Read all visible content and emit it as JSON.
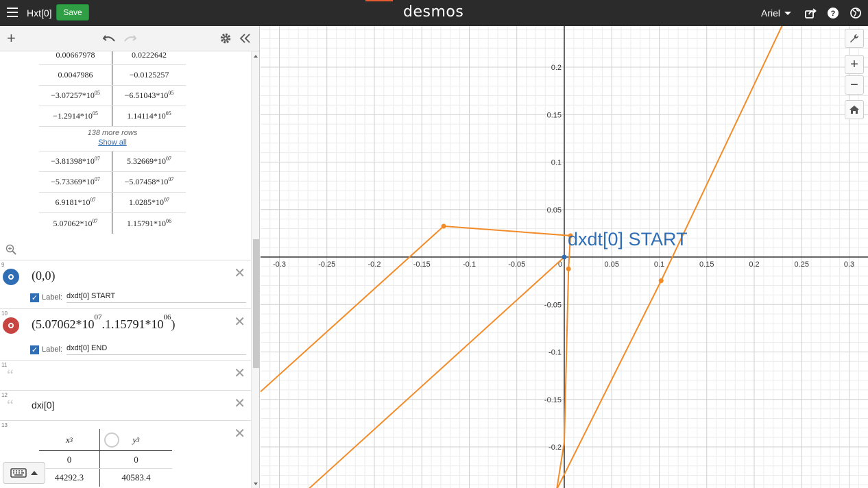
{
  "header": {
    "title": "Hxt[0]",
    "save_label": "Save",
    "brand": "desmos",
    "user": "Ariel"
  },
  "table_top": {
    "rows": [
      [
        "0.00667978",
        "0.0222642"
      ],
      [
        "0.0047986",
        "−0.0125257"
      ],
      [
        "−3.07257*10",
        "05",
        "−6.51043*10",
        "05"
      ],
      [
        "−1.2914*10",
        "05",
        "1.14114*10",
        "05"
      ]
    ]
  },
  "more_rows": {
    "count_label": "138 more rows",
    "show_all": "Show all"
  },
  "table_bottom": {
    "rows": [
      [
        "−3.81398*10",
        "07",
        "5.32669*10",
        "07"
      ],
      [
        "−5.73369*10",
        "07",
        "−5.07458*10",
        "07"
      ],
      [
        "6.9181*10",
        "07",
        "1.0285*10",
        "07"
      ],
      [
        "5.07062*10",
        "07",
        "1.15791*10",
        "06"
      ]
    ]
  },
  "expressions": {
    "e9": {
      "num": "9",
      "math": "(0,0)",
      "label_caption": "Label:",
      "label_value": "dxdt[0] START",
      "color": "#2f6eb5"
    },
    "e10": {
      "num": "10",
      "base1": "5.07062*10",
      "exp1": "07",
      "base2": ".1.15791*10",
      "exp2": "06",
      "label_caption": "Label:",
      "label_value": "dxdt[0] END",
      "color": "#c74440"
    },
    "e11": {
      "num": "11"
    },
    "e12": {
      "num": "12",
      "text": "dxi[0]"
    },
    "e13": {
      "num": "13",
      "col1": "x",
      "col1_sub": "3",
      "col2": "y",
      "col2_sub": "3",
      "rows": [
        [
          "0",
          "0"
        ],
        [
          "44292.3",
          "40583.4"
        ]
      ]
    }
  },
  "graph": {
    "point_label": "dxdt[0] START",
    "x_ticks": [
      "-0.3",
      "-0.25",
      "-0.2",
      "-0.15",
      "-0.1",
      "-0.05",
      "0",
      "0.05",
      "0.1",
      "0.15",
      "0.2",
      "0.25",
      "0.3"
    ],
    "y_ticks": [
      "0.2",
      "0.15",
      "0.1",
      "0.05",
      "-0.05",
      "-0.1",
      "-0.15",
      "-0.2"
    ],
    "curve_color": "#f28c28",
    "start_point_color": "#2f6eb5"
  }
}
